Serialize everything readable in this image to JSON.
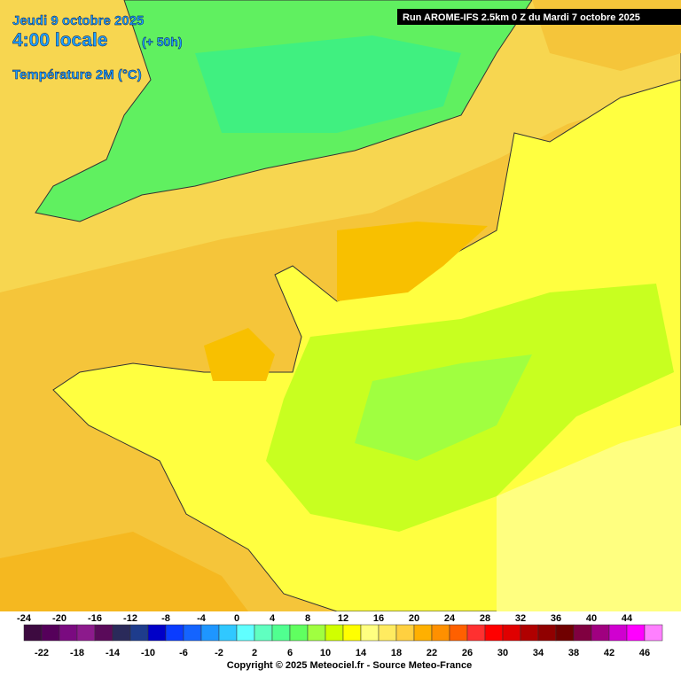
{
  "header": {
    "date": "Jeudi 9 octobre 2025",
    "time": "4:00 locale",
    "lead": "(+ 50h)",
    "variable": "Température 2M (°C)",
    "run": "Run AROME-IFS 2.5km 0 Z du Mardi 7 octobre 2025"
  },
  "legend": {
    "values": [
      -24,
      -22,
      -20,
      -18,
      -16,
      -14,
      -12,
      -10,
      -8,
      -6,
      -4,
      -2,
      0,
      2,
      4,
      6,
      8,
      10,
      12,
      14,
      16,
      18,
      20,
      22,
      24,
      26,
      28,
      30,
      32,
      34,
      36,
      38,
      40,
      42,
      44,
      46
    ],
    "colors": [
      "#3d0a40",
      "#55005a",
      "#7a0a80",
      "#8c1a8c",
      "#5a0a5a",
      "#2a2a5a",
      "#1e3c8c",
      "#0000c8",
      "#0a3cff",
      "#1464ff",
      "#1e96ff",
      "#30c8ff",
      "#60ffff",
      "#60ffc0",
      "#50ff90",
      "#60ff60",
      "#a0ff40",
      "#d0ff00",
      "#ffff00",
      "#ffff80",
      "#ffeb60",
      "#ffd040",
      "#ffb000",
      "#ff9000",
      "#ff6000",
      "#ff3030",
      "#ff0000",
      "#e00000",
      "#b00000",
      "#900000",
      "#700000",
      "#800040",
      "#a00080",
      "#d000d0",
      "#ff00ff",
      "#ff80ff"
    ]
  },
  "copyright": "Copyright © 2025 Meteociel.fr - Source Meteo-France"
}
